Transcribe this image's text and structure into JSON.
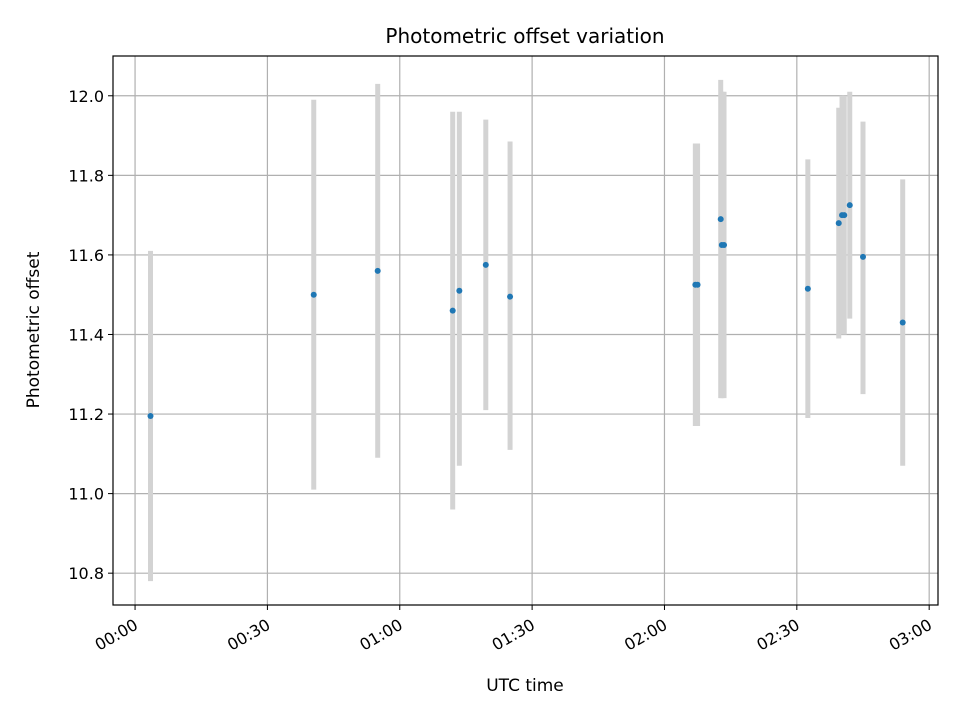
{
  "chart_data": {
    "type": "scatter",
    "title": "Photometric offset variation",
    "xlabel": "UTC time",
    "ylabel": "Photometric offset",
    "x_unit": "UTC",
    "xlim": [
      "23:55",
      "03:02"
    ],
    "ylim": [
      10.72,
      12.1
    ],
    "x_ticks": [
      "00:00",
      "00:30",
      "01:00",
      "01:30",
      "02:00",
      "02:30",
      "03:00"
    ],
    "y_ticks": [
      "10.8",
      "11.0",
      "11.2",
      "11.4",
      "11.6",
      "11.8",
      "12.0"
    ],
    "grid": true,
    "marker_color": "#1f77b4",
    "errorbar_color": "#d3d3d3",
    "points": [
      {
        "time": "00:03:30",
        "y": 11.195,
        "yerr_low": 10.78,
        "yerr_high": 11.61
      },
      {
        "time": "00:40:30",
        "y": 11.5,
        "yerr_low": 11.01,
        "yerr_high": 11.99
      },
      {
        "time": "00:55:00",
        "y": 11.56,
        "yerr_low": 11.09,
        "yerr_high": 12.03
      },
      {
        "time": "01:12:00",
        "y": 11.46,
        "yerr_low": 10.96,
        "yerr_high": 11.96
      },
      {
        "time": "01:13:30",
        "y": 11.51,
        "yerr_low": 11.07,
        "yerr_high": 11.96
      },
      {
        "time": "01:19:30",
        "y": 11.575,
        "yerr_low": 11.21,
        "yerr_high": 11.94
      },
      {
        "time": "01:25:00",
        "y": 11.495,
        "yerr_low": 11.11,
        "yerr_high": 11.885
      },
      {
        "time": "02:07:00",
        "y": 11.525,
        "yerr_low": 11.17,
        "yerr_high": 11.88
      },
      {
        "time": "02:07:30",
        "y": 11.525,
        "yerr_low": 11.17,
        "yerr_high": 11.88
      },
      {
        "time": "02:12:45",
        "y": 11.69,
        "yerr_low": 11.24,
        "yerr_high": 12.04
      },
      {
        "time": "02:13:00",
        "y": 11.625,
        "yerr_low": 11.24,
        "yerr_high": 12.01
      },
      {
        "time": "02:13:30",
        "y": 11.625,
        "yerr_low": 11.24,
        "yerr_high": 12.01
      },
      {
        "time": "02:32:30",
        "y": 11.515,
        "yerr_low": 11.19,
        "yerr_high": 11.84
      },
      {
        "time": "02:39:30",
        "y": 11.68,
        "yerr_low": 11.39,
        "yerr_high": 11.97
      },
      {
        "time": "02:40:15",
        "y": 11.7,
        "yerr_low": 11.4,
        "yerr_high": 12.0
      },
      {
        "time": "02:40:45",
        "y": 11.7,
        "yerr_low": 11.4,
        "yerr_high": 12.0
      },
      {
        "time": "02:42:00",
        "y": 11.725,
        "yerr_low": 11.44,
        "yerr_high": 12.01
      },
      {
        "time": "02:45:00",
        "y": 11.595,
        "yerr_low": 11.25,
        "yerr_high": 11.935
      },
      {
        "time": "02:54:00",
        "y": 11.43,
        "yerr_low": 11.07,
        "yerr_high": 11.79
      }
    ]
  }
}
